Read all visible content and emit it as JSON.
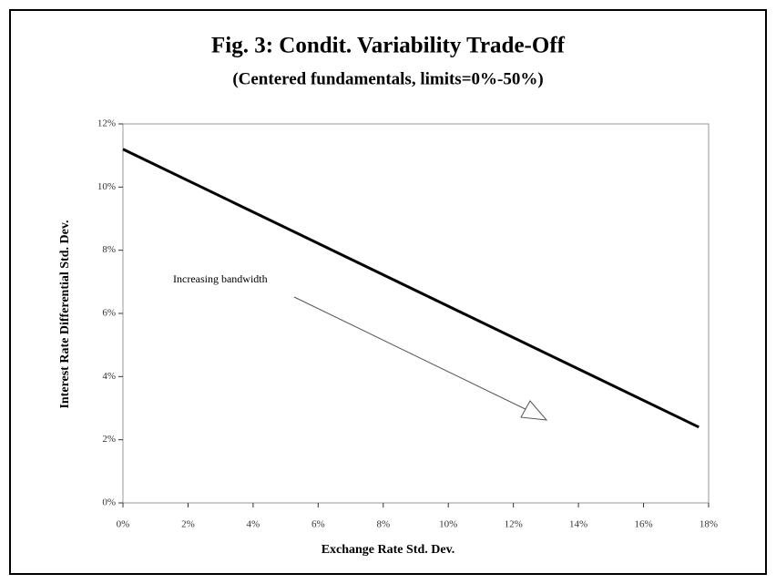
{
  "chart_data": {
    "type": "line",
    "title": "Fig. 3: Condit. Variability Trade-Off",
    "subtitle": "(Centered fundamentals, limits=0%-50%)",
    "x_label": "Exchange Rate Std. Dev.",
    "y_label": "Interest Rate Differential Std. Dev.",
    "annotation": "Increasing bandwidth",
    "x": [
      0,
      17.7
    ],
    "values": [
      11.2,
      2.4
    ],
    "color": "#000000",
    "xlim": [
      0,
      18
    ],
    "ylim": [
      0,
      12
    ],
    "xticks": [
      {
        "value": 0,
        "label": "0%"
      },
      {
        "value": 2,
        "label": "2%"
      },
      {
        "value": 4,
        "label": "4%"
      },
      {
        "value": 6,
        "label": "6%"
      },
      {
        "value": 8,
        "label": "8%"
      },
      {
        "value": 10,
        "label": "10%"
      },
      {
        "value": 12,
        "label": "12%"
      },
      {
        "value": 14,
        "label": "14%"
      },
      {
        "value": 16,
        "label": "16%"
      },
      {
        "value": 18,
        "label": "18%"
      }
    ],
    "yticks": [
      {
        "value": 0,
        "label": "0%"
      },
      {
        "value": 2,
        "label": "2%"
      },
      {
        "value": 4,
        "label": "4%"
      },
      {
        "value": 6,
        "label": "6%"
      },
      {
        "value": 8,
        "label": "8%"
      },
      {
        "value": 10,
        "label": "10%"
      },
      {
        "value": 12,
        "label": "12%"
      }
    ]
  }
}
